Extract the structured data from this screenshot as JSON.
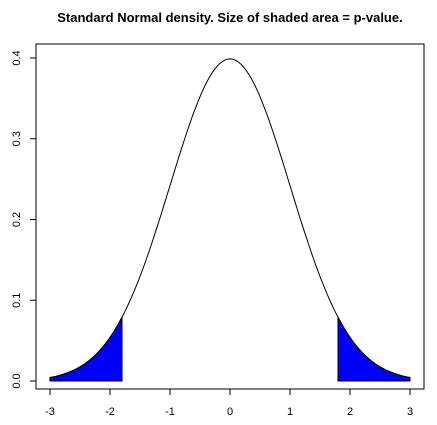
{
  "chart_data": {
    "type": "area",
    "title": "Standard Normal density. Size of shaded area = p-value.",
    "xlabel": "",
    "ylabel": "",
    "xlim": [
      -3,
      3
    ],
    "ylim": [
      0,
      0.4
    ],
    "x_ticks": [
      -3,
      -2,
      -1,
      0,
      1,
      2,
      3
    ],
    "y_ticks": [
      0.0,
      0.1,
      0.2,
      0.3,
      0.4
    ],
    "x_tick_labels": [
      "-3",
      "-2",
      "-1",
      "0",
      "1",
      "2",
      "3"
    ],
    "y_tick_labels": [
      "0.0",
      "0.1",
      "0.2",
      "0.3",
      "0.4"
    ],
    "grid": false,
    "series": [
      {
        "curve": "standard normal density",
        "x": [
          -3.0,
          -2.8,
          -2.6,
          -2.4,
          -2.2,
          -2.0,
          -1.8,
          -1.6,
          -1.4,
          -1.2,
          -1.0,
          -0.8,
          -0.6,
          -0.4,
          -0.2,
          0.0,
          0.2,
          0.4,
          0.6,
          0.8,
          1.0,
          1.2,
          1.4,
          1.6,
          1.8,
          2.0,
          2.2,
          2.4,
          2.6,
          2.8,
          3.0
        ],
        "y": [
          0.0044,
          0.0079,
          0.0136,
          0.0224,
          0.0355,
          0.054,
          0.079,
          0.1109,
          0.1497,
          0.1942,
          0.242,
          0.2897,
          0.3332,
          0.3683,
          0.391,
          0.3989,
          0.391,
          0.3683,
          0.3332,
          0.2897,
          0.242,
          0.1942,
          0.1497,
          0.1109,
          0.079,
          0.054,
          0.0355,
          0.0224,
          0.0136,
          0.0079,
          0.0044
        ],
        "color": "#000000"
      }
    ],
    "shaded_regions": [
      {
        "from": -3.0,
        "to": -1.8,
        "color": "#0000ff"
      },
      {
        "from": 1.8,
        "to": 3.0,
        "color": "#0000ff"
      }
    ]
  }
}
